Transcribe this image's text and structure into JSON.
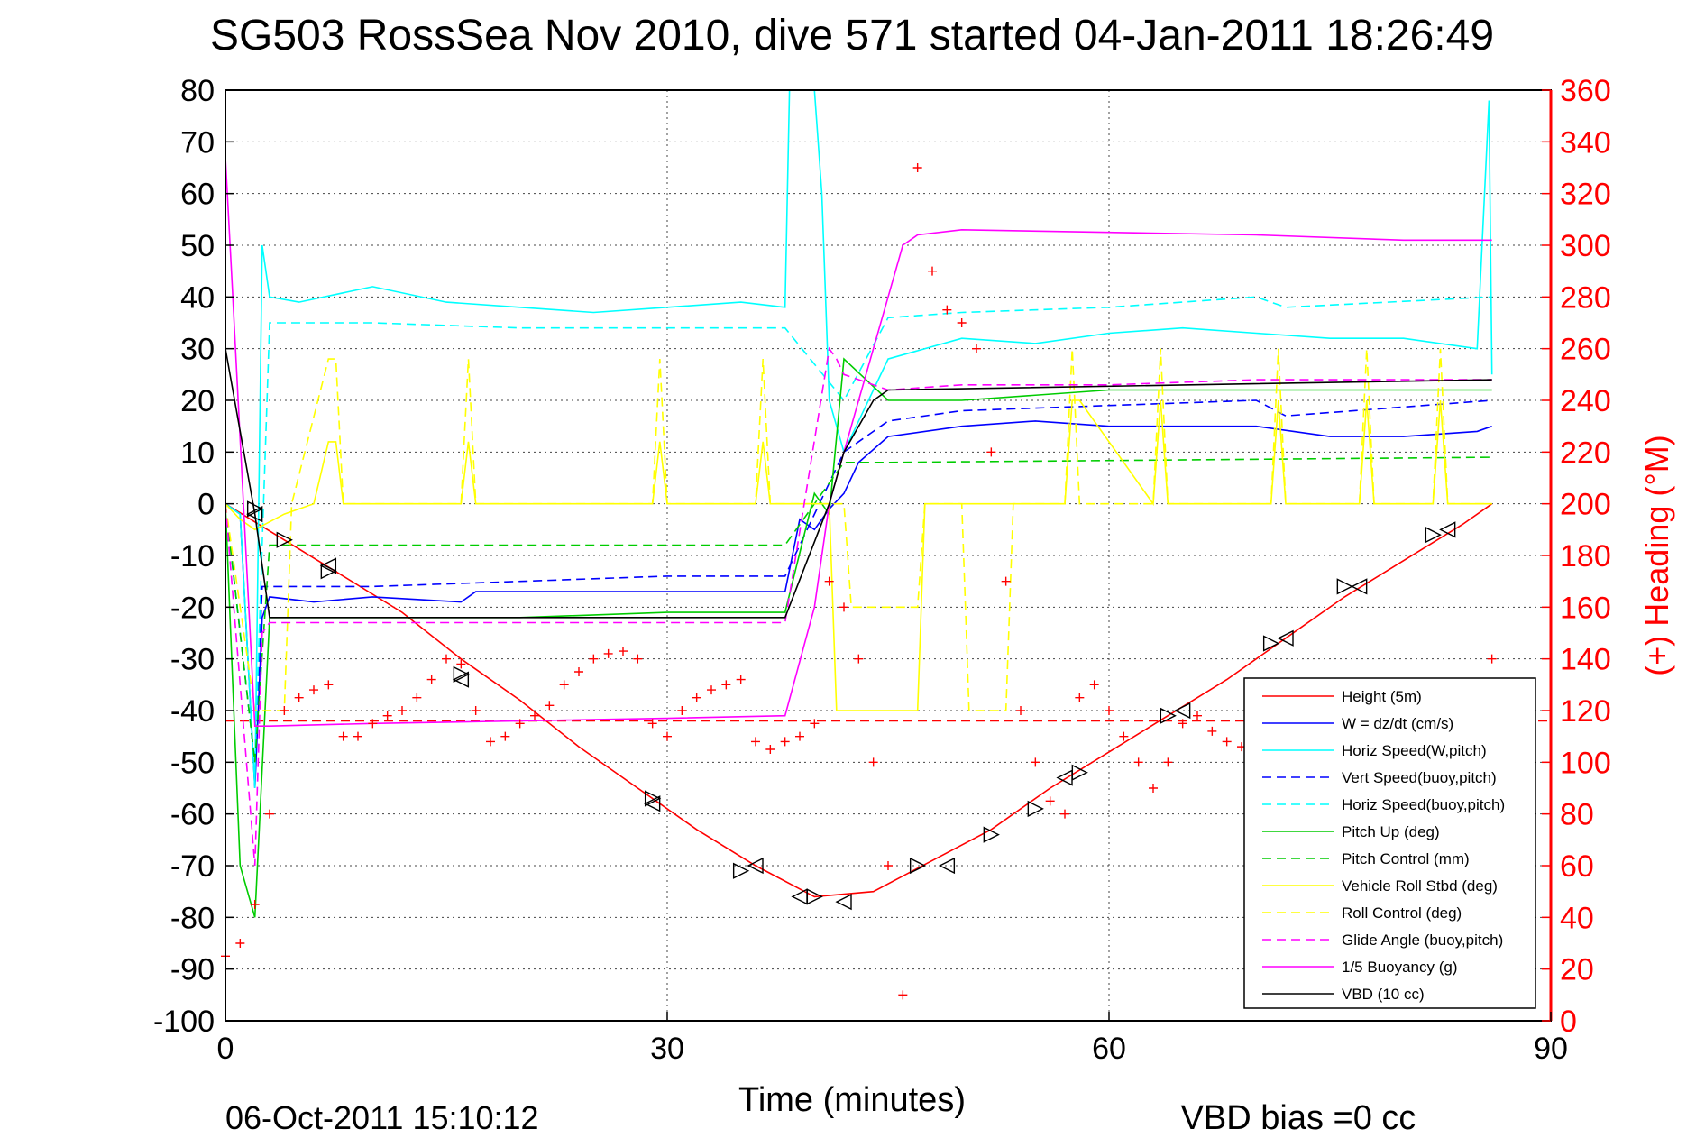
{
  "chart_data": {
    "type": "line",
    "title": "SG503 RossSea Nov 2010, dive 571 started 04-Jan-2011 18:26:49",
    "xlabel": "Time (minutes)",
    "ylabel": "",
    "y2label": "(+) Heading (°M)",
    "timestamp": "06-Oct-2011 15:10:12",
    "vbd_bias": "VBD bias =0 cc",
    "xlim": [
      0,
      90
    ],
    "ylim": [
      -100,
      80
    ],
    "y2lim": [
      0,
      360
    ],
    "x_ticks": [
      0,
      30,
      60,
      90
    ],
    "y_ticks": [
      80,
      70,
      60,
      50,
      40,
      30,
      20,
      10,
      0,
      -10,
      -20,
      -30,
      -40,
      -50,
      -60,
      -70,
      -80,
      -90,
      -100
    ],
    "y2_ticks": [
      360,
      340,
      320,
      300,
      280,
      260,
      240,
      220,
      200,
      180,
      160,
      140,
      120,
      100,
      80,
      60,
      40,
      20,
      0
    ],
    "grid": "dotted",
    "legend_position": "bottom-right",
    "legend": [
      {
        "label": "Height (5m)",
        "color": "#ff0000",
        "dash": "solid"
      },
      {
        "label": "W = dz/dt (cm/s)",
        "color": "#0000ff",
        "dash": "solid"
      },
      {
        "label": "Horiz Speed(W,pitch)",
        "color": "#00ffff",
        "dash": "solid"
      },
      {
        "label": "Vert Speed(buoy,pitch)",
        "color": "#0000ff",
        "dash": "dashed"
      },
      {
        "label": "Horiz Speed(buoy,pitch)",
        "color": "#00ffff",
        "dash": "dashed"
      },
      {
        "label": "Pitch Up (deg)",
        "color": "#00cc00",
        "dash": "solid"
      },
      {
        "label": "Pitch Control (mm)",
        "color": "#00cc00",
        "dash": "dashed"
      },
      {
        "label": "Vehicle Roll Stbd (deg)",
        "color": "#ffff00",
        "dash": "solid"
      },
      {
        "label": "Roll Control (deg)",
        "color": "#ffff00",
        "dash": "dashed"
      },
      {
        "label": "Glide Angle (buoy,pitch)",
        "color": "#ff00ff",
        "dash": "dashed"
      },
      {
        "label": "1/5 Buoyancy (g)",
        "color": "#ff00ff",
        "dash": "solid"
      },
      {
        "label": "VBD (10 cc)",
        "color": "#000000",
        "dash": "solid"
      }
    ],
    "series": [
      {
        "name": "Height (5m)",
        "color": "#ff0000",
        "dash": "solid",
        "x": [
          0,
          4,
          8,
          12,
          16,
          20,
          24,
          28,
          32,
          36,
          40,
          44,
          48,
          52,
          56,
          60,
          64,
          68,
          72,
          76,
          80,
          84,
          86
        ],
        "y": [
          0,
          -7,
          -14,
          -21,
          -30,
          -38,
          -47,
          -55,
          -63,
          -70,
          -76,
          -75,
          -69,
          -63,
          -55,
          -48,
          -41,
          -34,
          -26,
          -18,
          -11,
          -4,
          0
        ]
      },
      {
        "name": "W = dz/dt (cm/s)",
        "color": "#0000ff",
        "dash": "solid",
        "x": [
          0,
          1,
          2,
          2.5,
          3,
          6,
          10,
          16,
          17,
          25,
          30,
          38,
          39,
          40,
          41,
          42,
          43,
          45,
          50,
          55,
          60,
          65,
          70,
          75,
          80,
          85,
          86
        ],
        "y": [
          0,
          -2,
          -55,
          -22,
          -18,
          -19,
          -18,
          -19,
          -17,
          -17,
          -17,
          -17,
          -3,
          -5,
          -1,
          2,
          8,
          13,
          15,
          16,
          15,
          15,
          15,
          13,
          13,
          14,
          15
        ]
      },
      {
        "name": "Horiz Speed(W,pitch)",
        "color": "#00ffff",
        "dash": "solid",
        "x": [
          0,
          1,
          2,
          2.5,
          3,
          5,
          10,
          15,
          20,
          25,
          30,
          35,
          38,
          38.3,
          40,
          40.5,
          41,
          42,
          45,
          50,
          55,
          60,
          65,
          70,
          75,
          80,
          85,
          85.8,
          86
        ],
        "y": [
          0,
          -2,
          -55,
          50,
          40,
          39,
          42,
          39,
          38,
          37,
          38,
          39,
          38,
          80,
          80,
          60,
          20,
          10,
          28,
          32,
          31,
          33,
          34,
          33,
          32,
          32,
          30,
          78,
          25
        ]
      },
      {
        "name": "Vert Speed(buoy,pitch)",
        "color": "#0000ff",
        "dash": "dashed",
        "x": [
          0,
          2,
          2.5,
          3,
          10,
          20,
          30,
          38,
          42,
          45,
          50,
          60,
          70,
          72,
          86
        ],
        "y": [
          0,
          -50,
          -16,
          -16,
          -16,
          -15,
          -14,
          -14,
          10,
          16,
          18,
          19,
          20,
          17,
          20
        ]
      },
      {
        "name": "Horiz Speed(buoy,pitch)",
        "color": "#00ffff",
        "dash": "dashed",
        "x": [
          0,
          2,
          3,
          10,
          20,
          30,
          38,
          42,
          45,
          50,
          60,
          70,
          72,
          86
        ],
        "y": [
          0,
          -50,
          35,
          35,
          34,
          34,
          34,
          20,
          36,
          37,
          38,
          40,
          38,
          40
        ]
      },
      {
        "name": "Pitch Up (deg)",
        "color": "#00cc00",
        "dash": "solid",
        "x": [
          0,
          1,
          2,
          3,
          10,
          20,
          30,
          38,
          40,
          41,
          42,
          45,
          50,
          60,
          70,
          72,
          86
        ],
        "y": [
          0,
          -70,
          -80,
          -22,
          -22,
          -22,
          -21,
          -21,
          2,
          -2,
          28,
          20,
          20,
          22,
          22,
          22,
          22
        ]
      },
      {
        "name": "Pitch Control (mm)",
        "color": "#00cc00",
        "dash": "dashed",
        "x": [
          0,
          2,
          3,
          10,
          20,
          30,
          38,
          40,
          42,
          45,
          86
        ],
        "y": [
          0,
          -50,
          -8,
          -8,
          -8,
          -8,
          -8,
          0,
          8,
          8,
          9
        ]
      },
      {
        "name": "Vehicle Roll Stbd (deg)",
        "color": "#ffff00",
        "dash": "solid",
        "x": [
          0,
          1,
          2,
          4,
          6,
          7,
          7.5,
          8,
          16,
          16.5,
          17,
          29,
          29.5,
          30,
          36,
          36.5,
          37,
          38,
          41,
          41.5,
          42,
          47,
          47.5,
          50,
          50.5,
          53,
          53.5,
          57,
          57.5,
          58,
          63,
          63.5,
          64,
          71,
          71.5,
          72,
          77,
          77.5,
          78,
          82,
          82.5,
          83,
          86
        ],
        "y": [
          0,
          -3,
          -5,
          -2,
          0,
          12,
          12,
          0,
          0,
          12,
          0,
          0,
          12,
          0,
          0,
          12,
          0,
          0,
          0,
          -40,
          -40,
          -40,
          0,
          0,
          0,
          0,
          0,
          0,
          20,
          20,
          0,
          20,
          0,
          0,
          20,
          0,
          0,
          20,
          0,
          0,
          20,
          0,
          0
        ]
      },
      {
        "name": "Roll Control (deg)",
        "color": "#ffff00",
        "dash": "dashed",
        "x": [
          0,
          2,
          4,
          4.5,
          7,
          7.5,
          8,
          16,
          16.5,
          17,
          29,
          29.5,
          30,
          36,
          36.5,
          37,
          38,
          42,
          42.5,
          47,
          47.5,
          50,
          50.5,
          53,
          53.5,
          57,
          57.5,
          58,
          63,
          63.5,
          64,
          71,
          71.5,
          72,
          77,
          77.5,
          78,
          82,
          82.5,
          83,
          86
        ],
        "y": [
          0,
          -40,
          -40,
          0,
          28,
          28,
          0,
          0,
          28,
          0,
          0,
          28,
          0,
          0,
          28,
          0,
          0,
          0,
          -20,
          -20,
          0,
          0,
          -40,
          -40,
          0,
          0,
          30,
          0,
          0,
          30,
          0,
          0,
          30,
          0,
          0,
          30,
          0,
          0,
          30,
          0,
          0
        ]
      },
      {
        "name": "Glide Angle (buoy,pitch)",
        "color": "#ff00ff",
        "dash": "dashed",
        "x": [
          0,
          2,
          2.5,
          3,
          10,
          20,
          30,
          38,
          41,
          41.5,
          42,
          45,
          50,
          60,
          70,
          86
        ],
        "y": [
          0,
          -70,
          -25,
          -23,
          -23,
          -23,
          -23,
          -23,
          30,
          28,
          25,
          22,
          23,
          23,
          24,
          24
        ]
      },
      {
        "name": "1/5 Buoyancy (g)",
        "color": "#ff00ff",
        "dash": "solid",
        "x": [
          0,
          0.5,
          2,
          3,
          10,
          20,
          30,
          38,
          40,
          41,
          42,
          45,
          46,
          47,
          50,
          60,
          70,
          80,
          86
        ],
        "y": [
          67,
          40,
          -43,
          -43,
          -42.5,
          -42,
          -41.5,
          -41,
          -20,
          0,
          10,
          40,
          50,
          52,
          53,
          52.5,
          52,
          51,
          51
        ]
      },
      {
        "name": "VBD (10 cc)",
        "color": "#000000",
        "dash": "solid",
        "x": [
          0,
          2,
          3,
          10,
          20,
          30,
          38,
          41,
          42,
          44,
          45,
          86
        ],
        "y": [
          30,
          -2,
          -22,
          -22,
          -22,
          -22,
          -22,
          0,
          10,
          20,
          22,
          24
        ]
      },
      {
        "name": "Heading",
        "type": "scatter",
        "axis": "right",
        "color": "#ff0000",
        "x": [
          0,
          1,
          2,
          3,
          4,
          5,
          6,
          7,
          8,
          9,
          10,
          11,
          12,
          13,
          14,
          15,
          16,
          17,
          18,
          19,
          20,
          21,
          22,
          23,
          24,
          25,
          26,
          27,
          28,
          29,
          30,
          31,
          32,
          33,
          34,
          35,
          36,
          37,
          38,
          39,
          40,
          41,
          42,
          43,
          44,
          45,
          46,
          47,
          48,
          49,
          50,
          51,
          52,
          53,
          54,
          55,
          56,
          57,
          58,
          59,
          60,
          61,
          62,
          63,
          64,
          65,
          66,
          67,
          68,
          69,
          70,
          71,
          72,
          73,
          74,
          75,
          76,
          77,
          78,
          79,
          80,
          81,
          82,
          83,
          84,
          85,
          86
        ],
        "y": [
          25,
          30,
          45,
          80,
          120,
          125,
          128,
          130,
          110,
          110,
          115,
          118,
          120,
          125,
          132,
          140,
          138,
          120,
          108,
          110,
          115,
          118,
          122,
          130,
          135,
          140,
          142,
          143,
          140,
          115,
          110,
          120,
          125,
          128,
          130,
          132,
          108,
          105,
          108,
          110,
          115,
          170,
          160,
          140,
          100,
          60,
          10,
          330,
          290,
          275,
          270,
          260,
          220,
          170,
          120,
          100,
          85,
          80,
          125,
          130,
          120,
          110,
          100,
          90,
          100,
          115,
          118,
          112,
          108,
          106,
          104,
          102,
          100,
          100,
          100,
          100,
          100,
          100,
          100,
          100,
          100,
          100,
          100,
          100,
          100,
          100,
          140
        ]
      }
    ],
    "annotations": {
      "heading_reference": {
        "y2": 116,
        "color": "#ff0000",
        "dash": "dashed"
      },
      "triangle_markers": {
        "left": [
          [
            2,
            -2
          ],
          [
            7,
            -12
          ],
          [
            16,
            -34
          ],
          [
            29,
            -58
          ],
          [
            36,
            -70
          ],
          [
            39,
            -76
          ],
          [
            42,
            -77
          ],
          [
            49,
            -70
          ],
          [
            57,
            -53
          ],
          [
            65,
            -40
          ],
          [
            72,
            -26
          ],
          [
            77,
            -16
          ],
          [
            83,
            -5
          ]
        ],
        "right": [
          [
            2,
            -1
          ],
          [
            4,
            -7
          ],
          [
            7,
            -13
          ],
          [
            16,
            -33
          ],
          [
            29,
            -57
          ],
          [
            35,
            -71
          ],
          [
            40,
            -76
          ],
          [
            47,
            -70
          ],
          [
            52,
            -64
          ],
          [
            55,
            -59
          ],
          [
            58,
            -52
          ],
          [
            64,
            -41
          ],
          [
            71,
            -27
          ],
          [
            76,
            -16
          ],
          [
            82,
            -6
          ]
        ]
      }
    }
  }
}
